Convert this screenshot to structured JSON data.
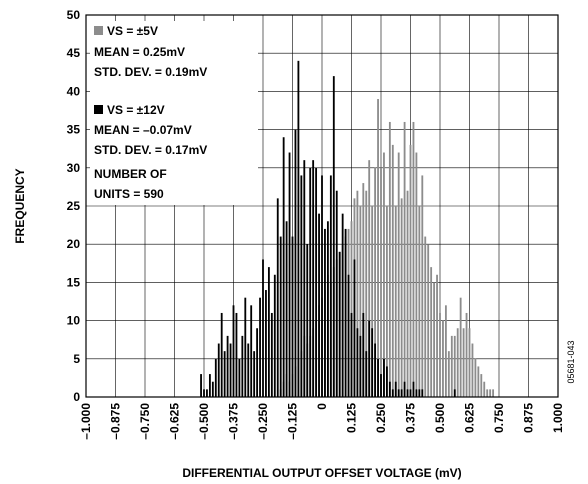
{
  "chart_data": {
    "type": "bar",
    "title": "",
    "xlabel": "DIFFERENTIAL OUTPUT OFFSET VOLTAGE (mV)",
    "ylabel": "FREQUENCY",
    "xlim": [
      -1.0,
      1.0
    ],
    "ylim": [
      0,
      50
    ],
    "bin_width": 0.0125,
    "grid": true,
    "x_tick_labels": [
      "–1.000",
      "–0.875",
      "–0.750",
      "–0.625",
      "–0.500",
      "–0.375",
      "–0.250",
      "–0.125",
      "0",
      "0.125",
      "0.250",
      "0.375",
      "0.500",
      "0.625",
      "0.750",
      "0.875",
      "1.000"
    ],
    "y_tick_labels": [
      "0",
      "5",
      "10",
      "15",
      "20",
      "25",
      "30",
      "35",
      "40",
      "45",
      "50"
    ],
    "legend_position": "top-left",
    "series": [
      {
        "name": "VS = ±5V",
        "color": "#8c8c8c",
        "legend_lines": [
          "MEAN = 0.25mV",
          "STD. DEV. = 0.19mV"
        ],
        "points": [
          {
            "x": -0.175,
            "y": 1
          },
          {
            "x": -0.1625,
            "y": 2
          },
          {
            "x": -0.15,
            "y": 3
          },
          {
            "x": -0.1375,
            "y": 2
          },
          {
            "x": -0.125,
            "y": 3
          },
          {
            "x": -0.1125,
            "y": 4
          },
          {
            "x": -0.1,
            "y": 5
          },
          {
            "x": -0.0875,
            "y": 6
          },
          {
            "x": -0.075,
            "y": 8
          },
          {
            "x": -0.0625,
            "y": 7
          },
          {
            "x": -0.05,
            "y": 8
          },
          {
            "x": -0.0375,
            "y": 9
          },
          {
            "x": -0.025,
            "y": 10
          },
          {
            "x": -0.0125,
            "y": 12
          },
          {
            "x": 0.0,
            "y": 13
          },
          {
            "x": 0.0125,
            "y": 14
          },
          {
            "x": 0.025,
            "y": 16
          },
          {
            "x": 0.0375,
            "y": 15
          },
          {
            "x": 0.05,
            "y": 17
          },
          {
            "x": 0.0625,
            "y": 18
          },
          {
            "x": 0.075,
            "y": 19
          },
          {
            "x": 0.0875,
            "y": 20
          },
          {
            "x": 0.1,
            "y": 21
          },
          {
            "x": 0.1125,
            "y": 22
          },
          {
            "x": 0.125,
            "y": 23
          },
          {
            "x": 0.1375,
            "y": 26
          },
          {
            "x": 0.15,
            "y": 27
          },
          {
            "x": 0.1625,
            "y": 25
          },
          {
            "x": 0.175,
            "y": 28
          },
          {
            "x": 0.1875,
            "y": 27
          },
          {
            "x": 0.2,
            "y": 31
          },
          {
            "x": 0.2125,
            "y": 25
          },
          {
            "x": 0.225,
            "y": 30
          },
          {
            "x": 0.2375,
            "y": 39
          },
          {
            "x": 0.25,
            "y": 30
          },
          {
            "x": 0.2625,
            "y": 32
          },
          {
            "x": 0.275,
            "y": 25
          },
          {
            "x": 0.2875,
            "y": 36
          },
          {
            "x": 0.3,
            "y": 33
          },
          {
            "x": 0.3125,
            "y": 25
          },
          {
            "x": 0.325,
            "y": 32
          },
          {
            "x": 0.3375,
            "y": 26
          },
          {
            "x": 0.35,
            "y": 36
          },
          {
            "x": 0.3625,
            "y": 27
          },
          {
            "x": 0.375,
            "y": 33
          },
          {
            "x": 0.3875,
            "y": 36
          },
          {
            "x": 0.4,
            "y": 32
          },
          {
            "x": 0.4125,
            "y": 25
          },
          {
            "x": 0.425,
            "y": 29
          },
          {
            "x": 0.4375,
            "y": 21
          },
          {
            "x": 0.45,
            "y": 20
          },
          {
            "x": 0.4625,
            "y": 17
          },
          {
            "x": 0.475,
            "y": 15
          },
          {
            "x": 0.4875,
            "y": 16
          },
          {
            "x": 0.5,
            "y": 11
          },
          {
            "x": 0.5125,
            "y": 10
          },
          {
            "x": 0.525,
            "y": 12
          },
          {
            "x": 0.5375,
            "y": 6
          },
          {
            "x": 0.55,
            "y": 8
          },
          {
            "x": 0.5625,
            "y": 8
          },
          {
            "x": 0.575,
            "y": 9
          },
          {
            "x": 0.5875,
            "y": 13
          },
          {
            "x": 0.6,
            "y": 9
          },
          {
            "x": 0.6125,
            "y": 11
          },
          {
            "x": 0.625,
            "y": 9
          },
          {
            "x": 0.6375,
            "y": 7
          },
          {
            "x": 0.65,
            "y": 5
          },
          {
            "x": 0.6625,
            "y": 4
          },
          {
            "x": 0.675,
            "y": 3
          },
          {
            "x": 0.6875,
            "y": 2
          },
          {
            "x": 0.7,
            "y": 1
          },
          {
            "x": 0.7125,
            "y": 1
          },
          {
            "x": 0.725,
            "y": 1
          }
        ]
      },
      {
        "name": "VS = ±12V",
        "color": "#000000",
        "legend_lines": [
          "MEAN = –0.07mV",
          "STD. DEV. = 0.17mV"
        ],
        "points": [
          {
            "x": -0.5125,
            "y": 3
          },
          {
            "x": -0.5,
            "y": 1
          },
          {
            "x": -0.4875,
            "y": 1
          },
          {
            "x": -0.475,
            "y": 3
          },
          {
            "x": -0.4625,
            "y": 2
          },
          {
            "x": -0.45,
            "y": 5
          },
          {
            "x": -0.4375,
            "y": 7
          },
          {
            "x": -0.425,
            "y": 11
          },
          {
            "x": -0.4125,
            "y": 6
          },
          {
            "x": -0.4,
            "y": 8
          },
          {
            "x": -0.3875,
            "y": 7
          },
          {
            "x": -0.375,
            "y": 12
          },
          {
            "x": -0.3625,
            "y": 11
          },
          {
            "x": -0.35,
            "y": 5
          },
          {
            "x": -0.3375,
            "y": 8
          },
          {
            "x": -0.325,
            "y": 13
          },
          {
            "x": -0.3125,
            "y": 7
          },
          {
            "x": -0.3,
            "y": 12
          },
          {
            "x": -0.2875,
            "y": 6
          },
          {
            "x": -0.275,
            "y": 9
          },
          {
            "x": -0.2625,
            "y": 13
          },
          {
            "x": -0.25,
            "y": 18
          },
          {
            "x": -0.2375,
            "y": 14
          },
          {
            "x": -0.225,
            "y": 17
          },
          {
            "x": -0.2125,
            "y": 11
          },
          {
            "x": -0.2,
            "y": 16
          },
          {
            "x": -0.1875,
            "y": 26
          },
          {
            "x": -0.175,
            "y": 21
          },
          {
            "x": -0.1625,
            "y": 34
          },
          {
            "x": -0.15,
            "y": 23
          },
          {
            "x": -0.1375,
            "y": 32
          },
          {
            "x": -0.125,
            "y": 21
          },
          {
            "x": -0.1125,
            "y": 35
          },
          {
            "x": -0.1,
            "y": 44
          },
          {
            "x": -0.0875,
            "y": 29
          },
          {
            "x": -0.075,
            "y": 31
          },
          {
            "x": -0.0625,
            "y": 20
          },
          {
            "x": -0.05,
            "y": 30
          },
          {
            "x": -0.0375,
            "y": 31
          },
          {
            "x": -0.025,
            "y": 30
          },
          {
            "x": -0.0125,
            "y": 24
          },
          {
            "x": 0.0,
            "y": 29
          },
          {
            "x": 0.0125,
            "y": 22
          },
          {
            "x": 0.025,
            "y": 23
          },
          {
            "x": 0.0375,
            "y": 29
          },
          {
            "x": 0.05,
            "y": 42
          },
          {
            "x": 0.0625,
            "y": 27
          },
          {
            "x": 0.075,
            "y": 19
          },
          {
            "x": 0.0875,
            "y": 24
          },
          {
            "x": 0.1,
            "y": 22
          },
          {
            "x": 0.1125,
            "y": 16
          },
          {
            "x": 0.125,
            "y": 11
          },
          {
            "x": 0.1375,
            "y": 18
          },
          {
            "x": 0.15,
            "y": 9
          },
          {
            "x": 0.1625,
            "y": 8
          },
          {
            "x": 0.175,
            "y": 11
          },
          {
            "x": 0.1875,
            "y": 6
          },
          {
            "x": 0.2,
            "y": 10
          },
          {
            "x": 0.2125,
            "y": 9
          },
          {
            "x": 0.225,
            "y": 7
          },
          {
            "x": 0.2375,
            "y": 5
          },
          {
            "x": 0.25,
            "y": 3
          },
          {
            "x": 0.2625,
            "y": 5
          },
          {
            "x": 0.275,
            "y": 4
          },
          {
            "x": 0.2875,
            "y": 2
          },
          {
            "x": 0.3,
            "y": 1
          },
          {
            "x": 0.3125,
            "y": 2
          },
          {
            "x": 0.325,
            "y": 1
          },
          {
            "x": 0.3375,
            "y": 1
          },
          {
            "x": 0.35,
            "y": 2
          },
          {
            "x": 0.3625,
            "y": 1
          },
          {
            "x": 0.375,
            "y": 1
          },
          {
            "x": 0.3875,
            "y": 2
          },
          {
            "x": 0.4,
            "y": 1
          },
          {
            "x": 0.4125,
            "y": 1
          },
          {
            "x": 0.425,
            "y": 1
          },
          {
            "x": 0.5625,
            "y": 1
          }
        ]
      }
    ],
    "annotation_lines": [
      "NUMBER OF",
      "UNITS = 590"
    ]
  },
  "figure_id": "05681-043"
}
